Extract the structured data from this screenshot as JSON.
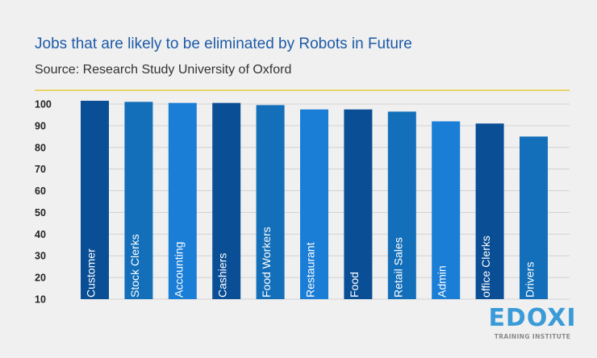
{
  "chart_data": {
    "type": "bar",
    "title": "Jobs that are likely to be eliminated by Robots in Future",
    "subtitle": "Source: Research Study University of Oxford",
    "xlabel": "",
    "ylabel": "",
    "categories": [
      "Customer",
      "Stock Clerks",
      "Accounting",
      "Cashiers",
      "Food Workers",
      "Restaurant",
      "Food",
      "Retail Sales",
      "Admin",
      "office Clerks",
      "Drivers"
    ],
    "values": [
      101.5,
      101,
      100.5,
      100.5,
      99.5,
      97.5,
      97.5,
      96.5,
      92,
      91,
      85
    ],
    "ylim": [
      10,
      100
    ],
    "yticks": [
      100,
      90,
      80,
      70,
      60,
      50,
      40,
      30,
      20,
      10
    ],
    "grid": true,
    "colors": [
      "#0a4f96",
      "#136fb9",
      "#1a7dd6",
      "#0a4f96",
      "#136fb9",
      "#1a7dd6",
      "#0a4f96",
      "#136fb9",
      "#1a7dd6",
      "#0a4f96",
      "#136fb9"
    ],
    "rule_color": "#e7d56a"
  },
  "logo": {
    "main": "EDOXI",
    "sub": "TRAINING INSTITUTE"
  }
}
